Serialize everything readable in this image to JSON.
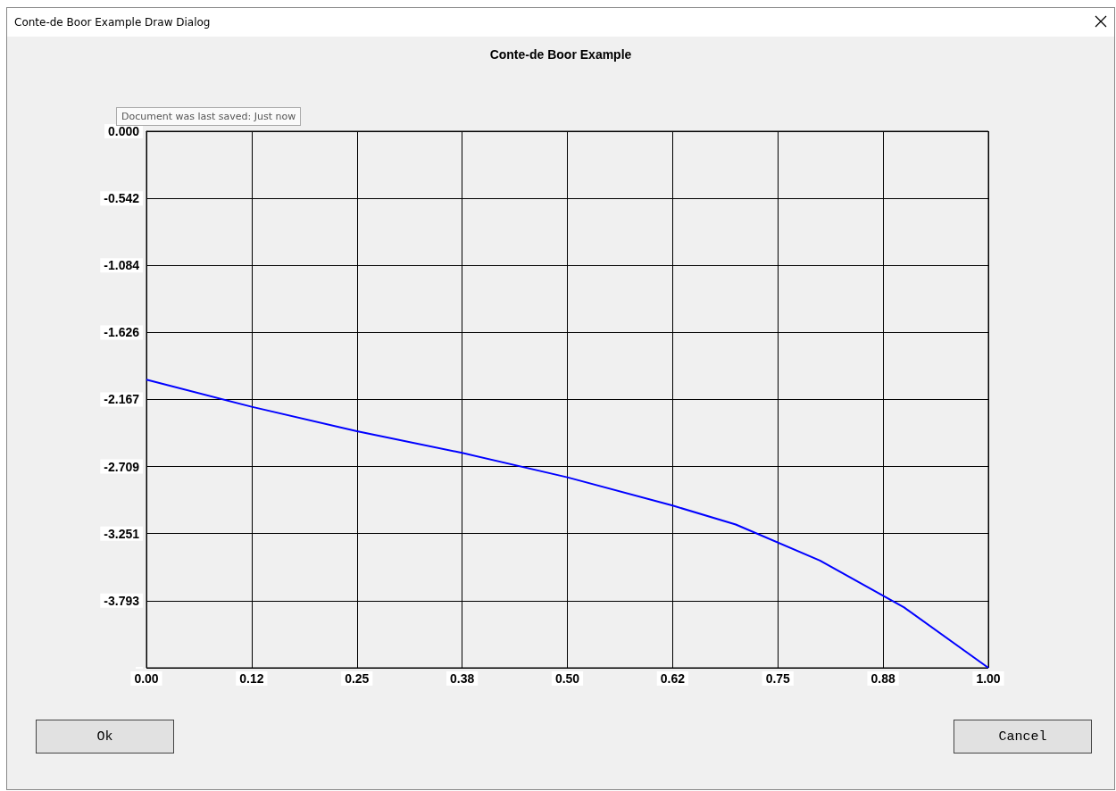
{
  "chart_data": {
    "type": "line",
    "title": "Conte-de Boor Example",
    "subtitle": "Conte-de Boor Example Draw Dialog",
    "annotations": [
      "Document was last saved: Just now",
      "Ok",
      "Cancel"
    ],
    "x": [
      0,
      0.125,
      0.25,
      0.375,
      0.5,
      0.625,
      0.7,
      0.8,
      0.9,
      1
    ],
    "series": [
      {
        "color": "#0000ff",
        "values": [
          -2.007,
          -2.226,
          -2.423,
          -2.599,
          -2.796,
          -3.024,
          -3.177,
          -3.468,
          -3.847,
          -4.335
        ]
      }
    ],
    "xlim": [
      0,
      1
    ],
    "xticks": [
      {
        "value": 0,
        "label": "0.00"
      },
      {
        "value": 0.125,
        "label": "0.12"
      },
      {
        "value": 0.25,
        "label": "0.25"
      },
      {
        "value": 0.375,
        "label": "0.38"
      },
      {
        "value": 0.5,
        "label": "0.50"
      },
      {
        "value": 0.625,
        "label": "0.62"
      },
      {
        "value": 0.75,
        "label": "0.75"
      },
      {
        "value": 0.875,
        "label": "0.88"
      },
      {
        "value": 1,
        "label": "1.00"
      }
    ],
    "ylim": [
      -4.335,
      0
    ],
    "yticks": [
      {
        "value": 0,
        "label": "0.000"
      },
      {
        "value": -0.542,
        "label": "-0.542"
      },
      {
        "value": -1.084,
        "label": "-1.084"
      },
      {
        "value": -1.626,
        "label": "-1.626"
      },
      {
        "value": -2.167,
        "label": "-2.167"
      },
      {
        "value": -2.709,
        "label": "-2.709"
      },
      {
        "value": -3.251,
        "label": "-3.251"
      },
      {
        "value": -3.793,
        "label": "-3.793"
      },
      {
        "value": -4.335,
        "label": null
      }
    ],
    "grid": true,
    "marker": "none",
    "line_style": "solid"
  }
}
